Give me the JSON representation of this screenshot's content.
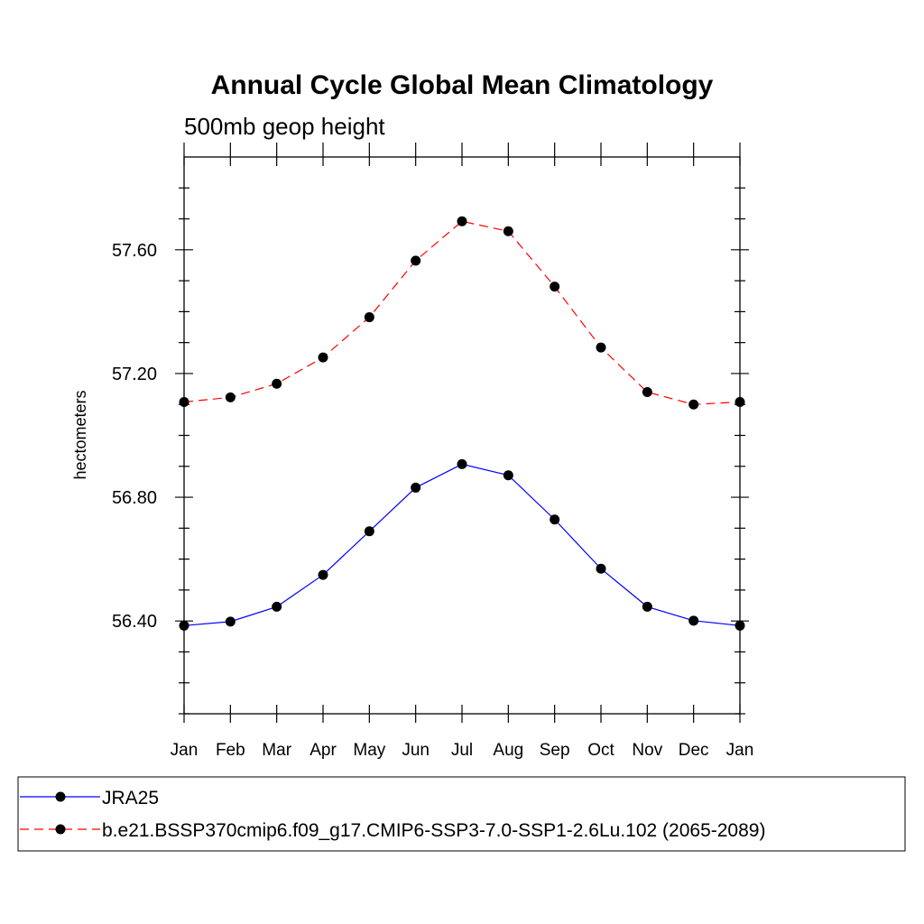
{
  "chart_data": {
    "type": "line",
    "title": "Annual Cycle Global Mean Climatology",
    "subtitle": "500mb geop height",
    "ylabel": "hectometers",
    "xlabel": "",
    "categories": [
      "Jan",
      "Feb",
      "Mar",
      "Apr",
      "May",
      "Jun",
      "Jul",
      "Aug",
      "Sep",
      "Oct",
      "Nov",
      "Dec",
      "Jan"
    ],
    "y_ticks": [
      "56.40",
      "56.80",
      "57.20",
      "57.60"
    ],
    "ylim": [
      56.1,
      57.9
    ],
    "grid": false,
    "legend_position": "bottom",
    "series": [
      {
        "name": "JRA25",
        "color": "#0000ff",
        "line_style": "solid",
        "marker": "filled-circle",
        "values": [
          56.385,
          56.398,
          56.446,
          56.549,
          56.69,
          56.831,
          56.907,
          56.871,
          56.728,
          56.569,
          56.446,
          56.401,
          56.385
        ]
      },
      {
        "name": "b.e21.BSSP370cmip6.f09_g17.CMIP6-SSP3-7.0-SSP1-2.6Lu.102 (2065-2089)",
        "color": "#ff0000",
        "line_style": "dashed",
        "marker": "filled-circle",
        "values": [
          57.108,
          57.123,
          57.167,
          57.252,
          57.382,
          57.565,
          57.692,
          57.66,
          57.481,
          57.284,
          57.14,
          57.1,
          57.108
        ]
      }
    ]
  }
}
